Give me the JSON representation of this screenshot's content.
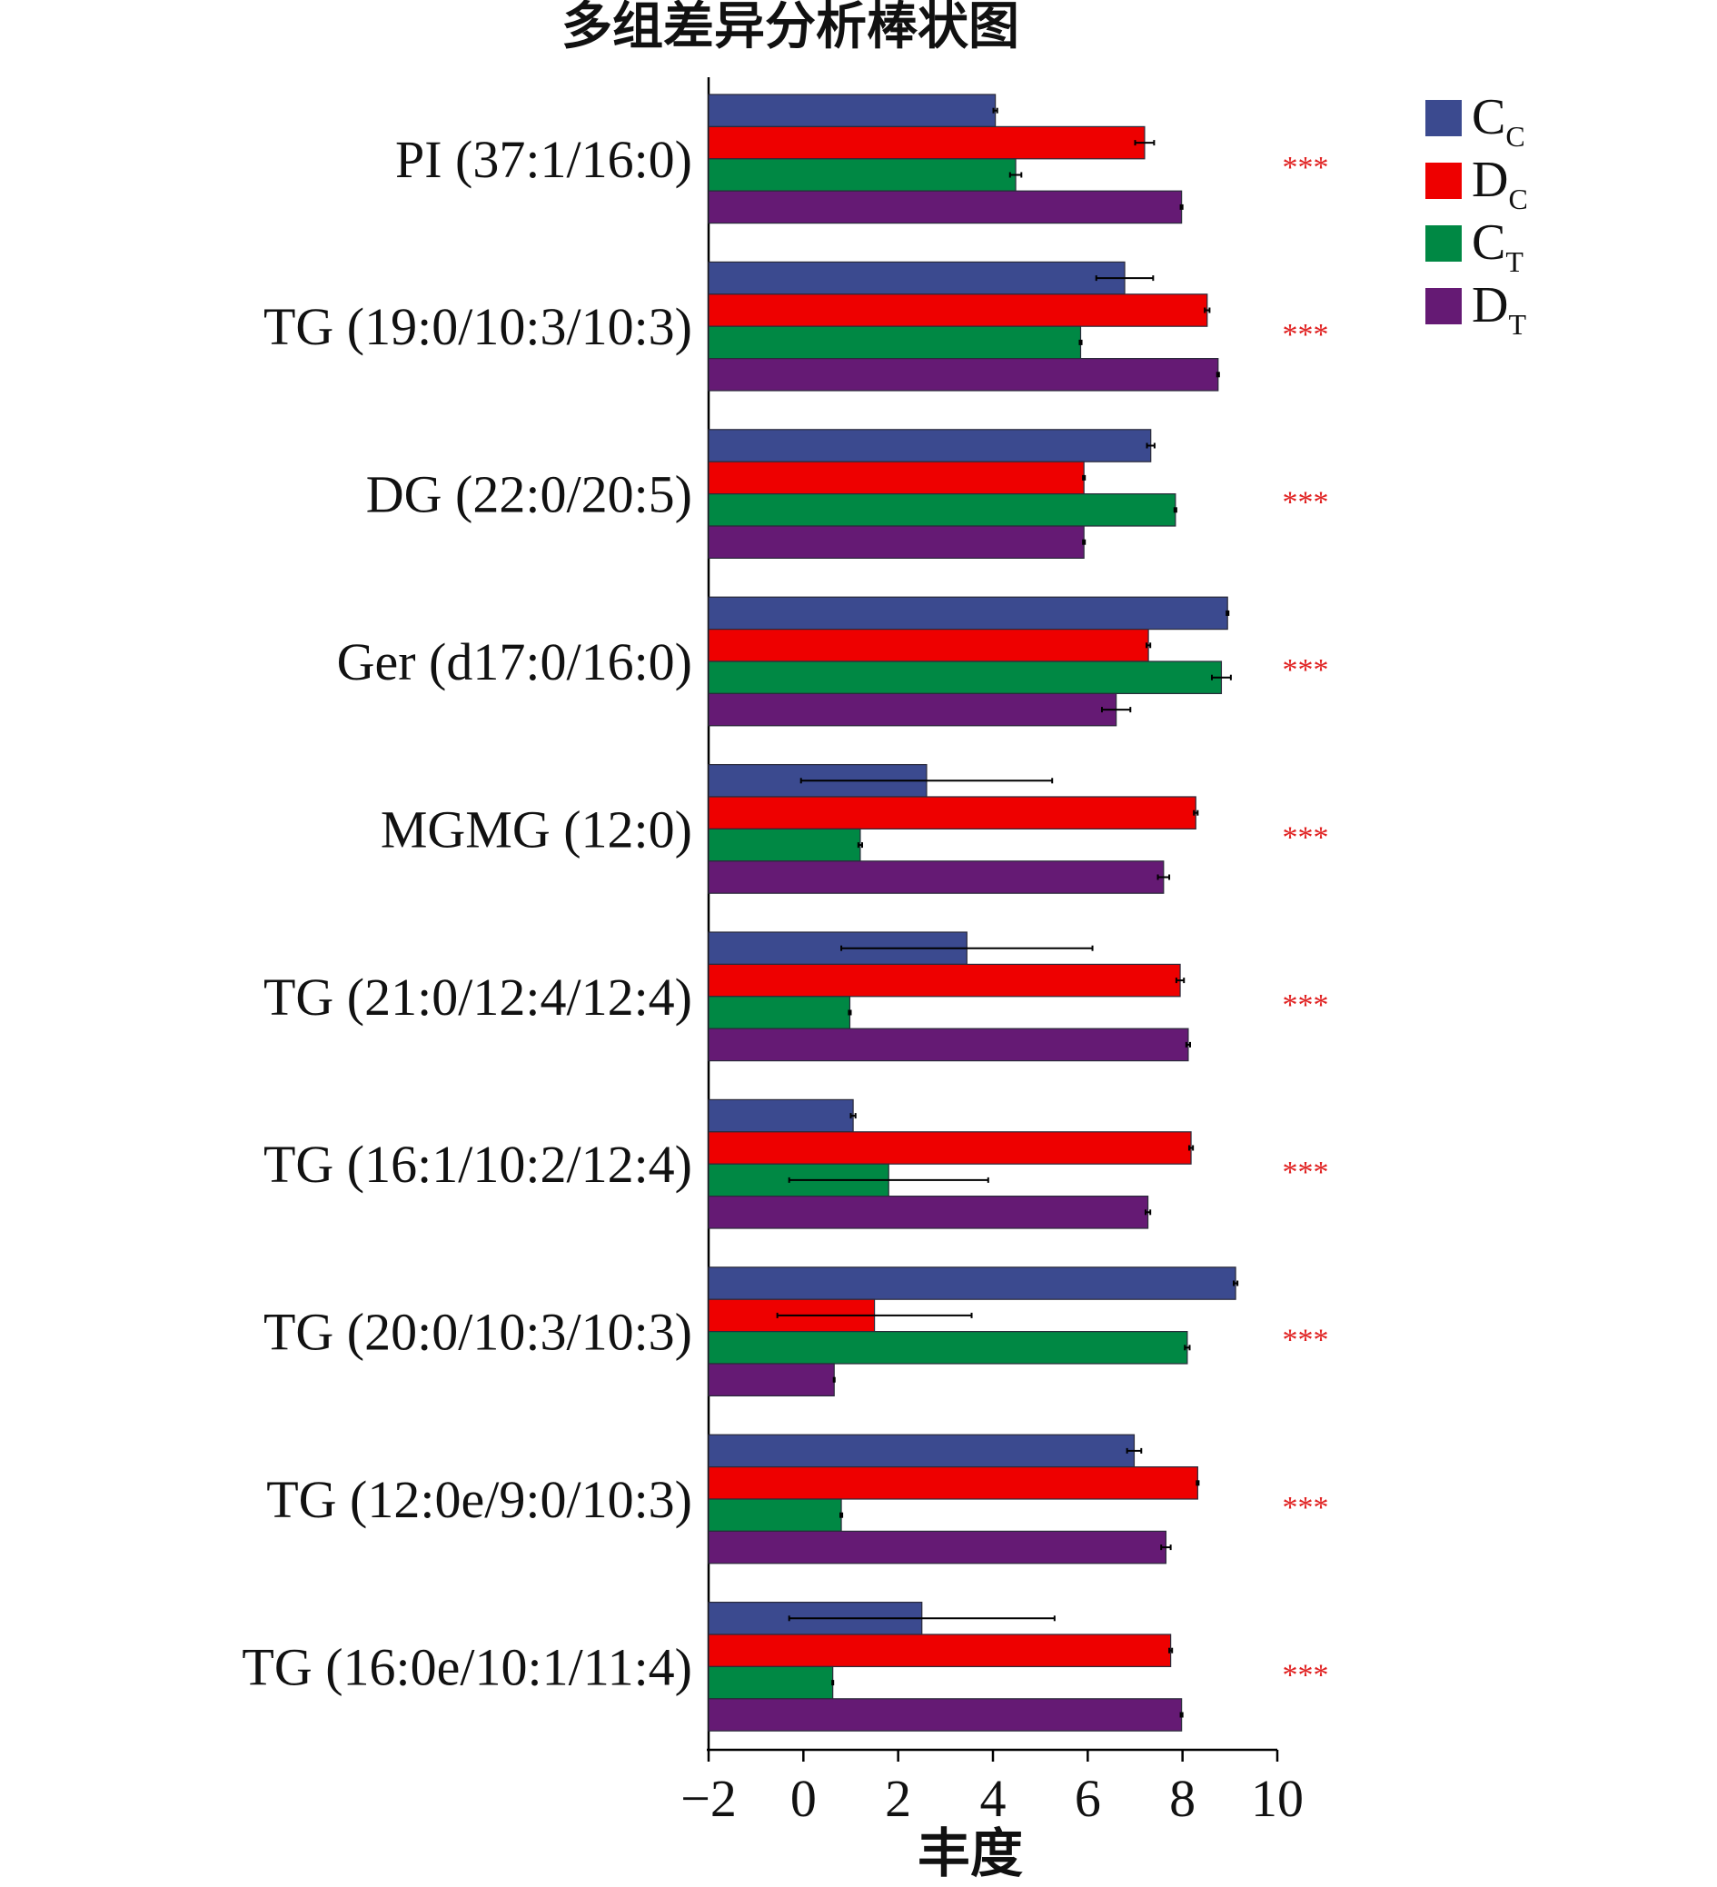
{
  "chart_data": {
    "type": "bar",
    "orientation": "horizontal",
    "title": "多组差异分析棒状图",
    "xlabel": "丰度",
    "ylabel": "",
    "xlim": [
      -2,
      10
    ],
    "xticks": [
      -2,
      0,
      2,
      4,
      6,
      8,
      10
    ],
    "xtick_labels": [
      "−2",
      "0",
      "2",
      "4",
      "6",
      "8",
      "10"
    ],
    "grid": false,
    "legend_position": "top-right",
    "significance_label": "***",
    "categories": [
      "PI (37:1/16:0)",
      "TG (19:0/10:3/10:3)",
      "DG (22:0/20:5)",
      "Ger (d17:0/16:0)",
      "MGMG (12:0)",
      "TG (21:0/12:4/12:4)",
      "TG (16:1/10:2/12:4)",
      "TG (20:0/10:3/10:3)",
      "TG (12:0e/9:0/10:3)",
      "TG (16:0e/10:1/11:4)"
    ],
    "series": [
      {
        "name": "C",
        "sub": "C",
        "color": "#3b4a8f",
        "values": [
          4.05,
          6.78,
          7.33,
          8.95,
          2.6,
          3.45,
          1.05,
          9.12,
          6.98,
          2.5
        ],
        "errors": [
          0.04,
          0.6,
          0.08,
          0.02,
          2.65,
          2.65,
          0.05,
          0.04,
          0.15,
          2.8
        ]
      },
      {
        "name": "D",
        "sub": "C",
        "color": "#ee0000",
        "values": [
          7.2,
          8.52,
          5.92,
          7.28,
          8.28,
          7.95,
          8.18,
          1.5,
          8.32,
          7.75
        ],
        "errors": [
          0.2,
          0.05,
          0.02,
          0.04,
          0.04,
          0.08,
          0.04,
          2.05,
          0.02,
          0.03
        ]
      },
      {
        "name": "C",
        "sub": "T",
        "color": "#008844",
        "values": [
          4.48,
          5.85,
          7.85,
          8.82,
          1.2,
          0.98,
          1.8,
          8.1,
          0.8,
          0.62
        ],
        "errors": [
          0.12,
          0.02,
          0.02,
          0.2,
          0.04,
          0.02,
          2.1,
          0.05,
          0.02,
          0.01
        ]
      },
      {
        "name": "D",
        "sub": "T",
        "color": "#651a74",
        "values": [
          7.98,
          8.75,
          5.92,
          6.6,
          7.6,
          8.12,
          7.27,
          0.65,
          7.65,
          7.98
        ],
        "errors": [
          0.02,
          0.02,
          0.02,
          0.3,
          0.12,
          0.04,
          0.05,
          0.01,
          0.1,
          0.02
        ]
      }
    ]
  }
}
